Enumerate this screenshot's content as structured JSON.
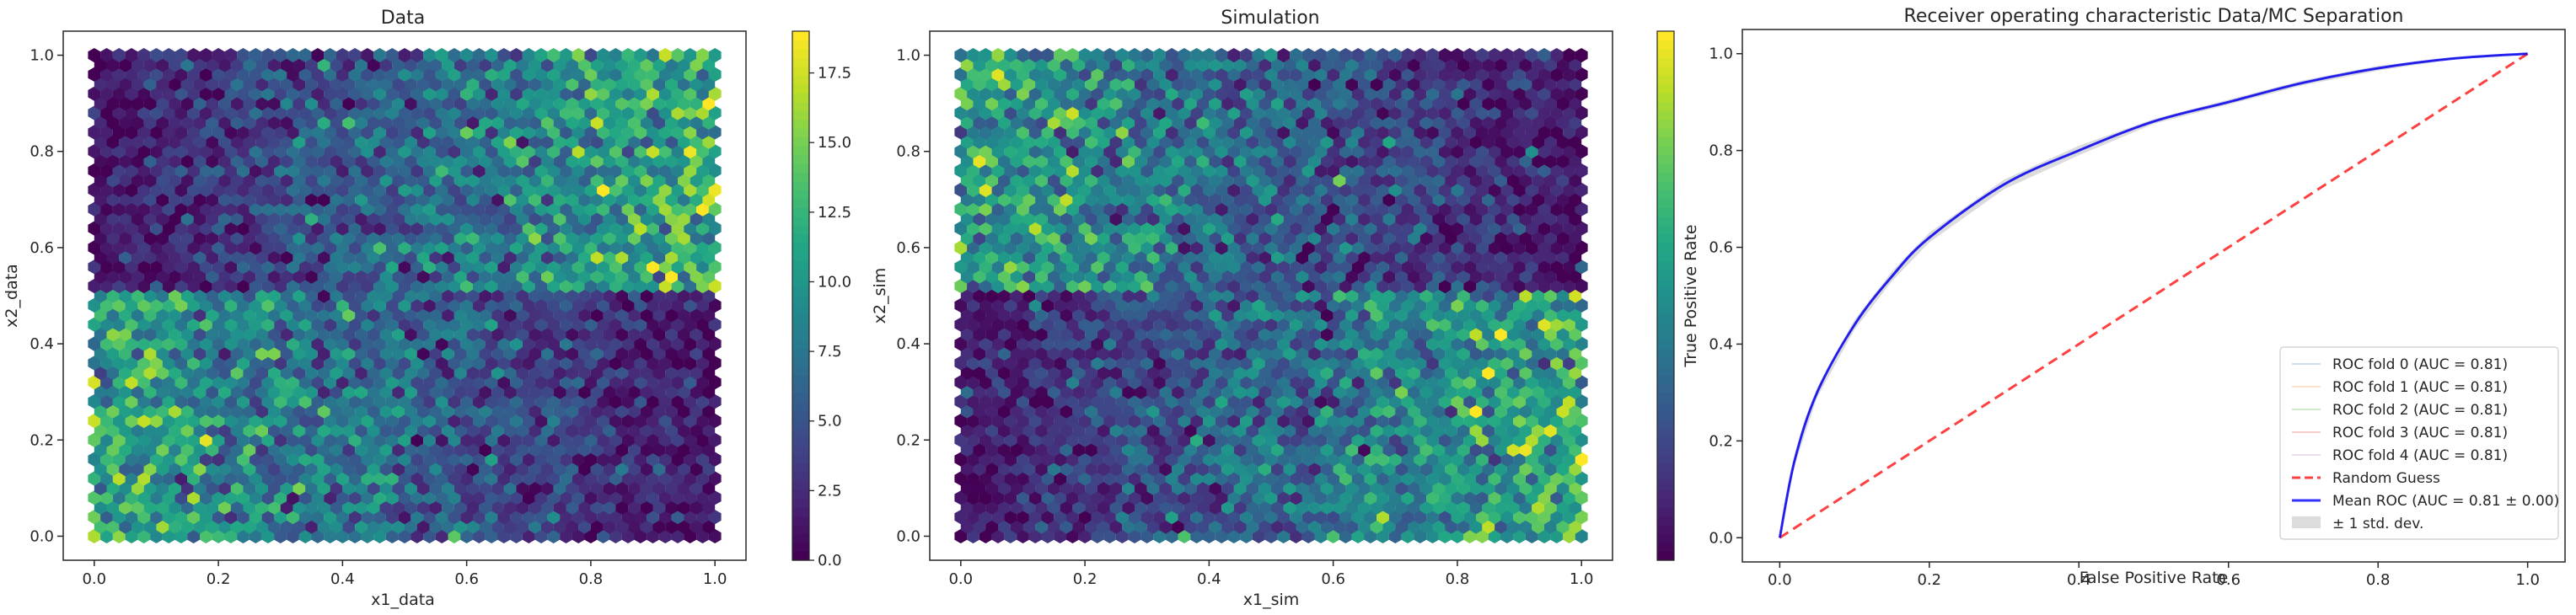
{
  "chart_data": [
    {
      "type": "heatmap",
      "subtype": "hexbin",
      "title": "Data",
      "xlabel": "x1_data",
      "ylabel": "x2_data",
      "xlim": [
        0,
        1
      ],
      "ylim": [
        0,
        1
      ],
      "x_ticks": [
        "0.0",
        "0.2",
        "0.4",
        "0.6",
        "0.8",
        "1.0"
      ],
      "y_ticks": [
        "0.0",
        "0.2",
        "0.4",
        "0.6",
        "0.8",
        "1.0"
      ],
      "colorbar": {
        "range": [
          0,
          19
        ],
        "ticks": [
          "0.0",
          "2.5",
          "5.0",
          "7.5",
          "10.0",
          "12.5",
          "15.0",
          "17.5"
        ],
        "colormap": "viridis"
      },
      "density_pattern": {
        "top_half": "count rises from ~1 at x=0 to ~12 at x=1",
        "bottom_half": "count falls from ~11 at x=0 to ~1 at x=1"
      }
    },
    {
      "type": "heatmap",
      "subtype": "hexbin",
      "title": "Simulation",
      "xlabel": "x1_sim",
      "ylabel": "x2_sim",
      "xlim": [
        0,
        1
      ],
      "ylim": [
        0,
        1
      ],
      "x_ticks": [
        "0.0",
        "0.2",
        "0.4",
        "0.6",
        "0.8",
        "1.0"
      ],
      "y_ticks": [
        "0.0",
        "0.2",
        "0.4",
        "0.6",
        "0.8",
        "1.0"
      ],
      "colorbar": {
        "range": [
          0,
          19
        ],
        "ticks": [],
        "colormap": "viridis"
      },
      "density_pattern": {
        "top_half": "count falls from ~13 at x=0 to ~1 at x=1",
        "bottom_half": "count rises from ~1 at x=0 to ~13 at x=1"
      }
    },
    {
      "type": "line",
      "title": "Receiver operating characteristic Data/MC Separation",
      "xlabel": "False Positive Rate",
      "ylabel": "True Positive Rate",
      "xlim": [
        -0.05,
        1.05
      ],
      "ylim": [
        -0.05,
        1.05
      ],
      "x_ticks": [
        "0.0",
        "0.2",
        "0.4",
        "0.6",
        "0.8",
        "1.0"
      ],
      "y_ticks": [
        "0.0",
        "0.2",
        "0.4",
        "0.6",
        "0.8",
        "1.0"
      ],
      "legend_position": "lower right",
      "series": [
        {
          "name": "ROC fold 0 (AUC = 0.81)",
          "color": "#1f77b4",
          "style": "solid-faint",
          "x": [
            0,
            0.02,
            0.05,
            0.1,
            0.15,
            0.2,
            0.3,
            0.4,
            0.5,
            0.6,
            0.7,
            0.8,
            0.9,
            1.0
          ],
          "y": [
            0,
            0.16,
            0.3,
            0.44,
            0.54,
            0.62,
            0.73,
            0.8,
            0.86,
            0.9,
            0.94,
            0.97,
            0.99,
            1.0
          ]
        },
        {
          "name": "ROC fold 1 (AUC = 0.81)",
          "color": "#ff7f0e",
          "style": "solid-faint",
          "x": [
            0,
            0.02,
            0.05,
            0.1,
            0.15,
            0.2,
            0.3,
            0.4,
            0.5,
            0.6,
            0.7,
            0.8,
            0.9,
            1.0
          ],
          "y": [
            0,
            0.16,
            0.3,
            0.44,
            0.54,
            0.62,
            0.73,
            0.8,
            0.86,
            0.9,
            0.94,
            0.97,
            0.99,
            1.0
          ]
        },
        {
          "name": "ROC fold 2 (AUC = 0.81)",
          "color": "#2ca02c",
          "style": "solid-faint",
          "x": [
            0,
            0.02,
            0.05,
            0.1,
            0.15,
            0.2,
            0.3,
            0.4,
            0.5,
            0.6,
            0.7,
            0.8,
            0.9,
            1.0
          ],
          "y": [
            0,
            0.16,
            0.3,
            0.44,
            0.54,
            0.62,
            0.73,
            0.8,
            0.86,
            0.9,
            0.94,
            0.97,
            0.99,
            1.0
          ]
        },
        {
          "name": "ROC fold 3 (AUC = 0.81)",
          "color": "#d62728",
          "style": "solid-faint",
          "x": [
            0,
            0.02,
            0.05,
            0.1,
            0.15,
            0.2,
            0.3,
            0.4,
            0.5,
            0.6,
            0.7,
            0.8,
            0.9,
            1.0
          ],
          "y": [
            0,
            0.16,
            0.3,
            0.44,
            0.54,
            0.62,
            0.73,
            0.8,
            0.86,
            0.9,
            0.94,
            0.97,
            0.99,
            1.0
          ]
        },
        {
          "name": "ROC fold 4 (AUC = 0.81)",
          "color": "#9467bd",
          "style": "solid-faint",
          "x": [
            0,
            0.02,
            0.05,
            0.1,
            0.15,
            0.2,
            0.3,
            0.4,
            0.5,
            0.6,
            0.7,
            0.8,
            0.9,
            1.0
          ],
          "y": [
            0,
            0.16,
            0.3,
            0.44,
            0.54,
            0.62,
            0.73,
            0.8,
            0.86,
            0.9,
            0.94,
            0.97,
            0.99,
            1.0
          ]
        },
        {
          "name": "Random Guess",
          "color": "#ff0000",
          "style": "dashed",
          "x": [
            0,
            1
          ],
          "y": [
            0,
            1
          ]
        },
        {
          "name": "Mean ROC (AUC = 0.81 ± 0.00)",
          "color": "#0000ff",
          "style": "solid",
          "x": [
            0,
            0.02,
            0.05,
            0.1,
            0.15,
            0.2,
            0.3,
            0.4,
            0.5,
            0.6,
            0.7,
            0.8,
            0.9,
            1.0
          ],
          "y": [
            0,
            0.16,
            0.3,
            0.44,
            0.54,
            0.62,
            0.73,
            0.8,
            0.86,
            0.9,
            0.94,
            0.97,
            0.99,
            1.0
          ]
        },
        {
          "name": "± 1 std. dev.",
          "color": "#bfbfbf",
          "style": "band",
          "x": [
            0,
            0.02,
            0.05,
            0.1,
            0.15,
            0.2,
            0.3,
            0.4,
            0.5,
            0.6,
            0.7,
            0.8,
            0.9,
            1.0
          ],
          "y_low": [
            0,
            0.15,
            0.29,
            0.43,
            0.53,
            0.61,
            0.72,
            0.79,
            0.855,
            0.895,
            0.935,
            0.965,
            0.988,
            1.0
          ],
          "y_high": [
            0,
            0.17,
            0.31,
            0.45,
            0.55,
            0.63,
            0.74,
            0.81,
            0.865,
            0.905,
            0.945,
            0.975,
            0.992,
            1.0
          ]
        }
      ]
    }
  ]
}
